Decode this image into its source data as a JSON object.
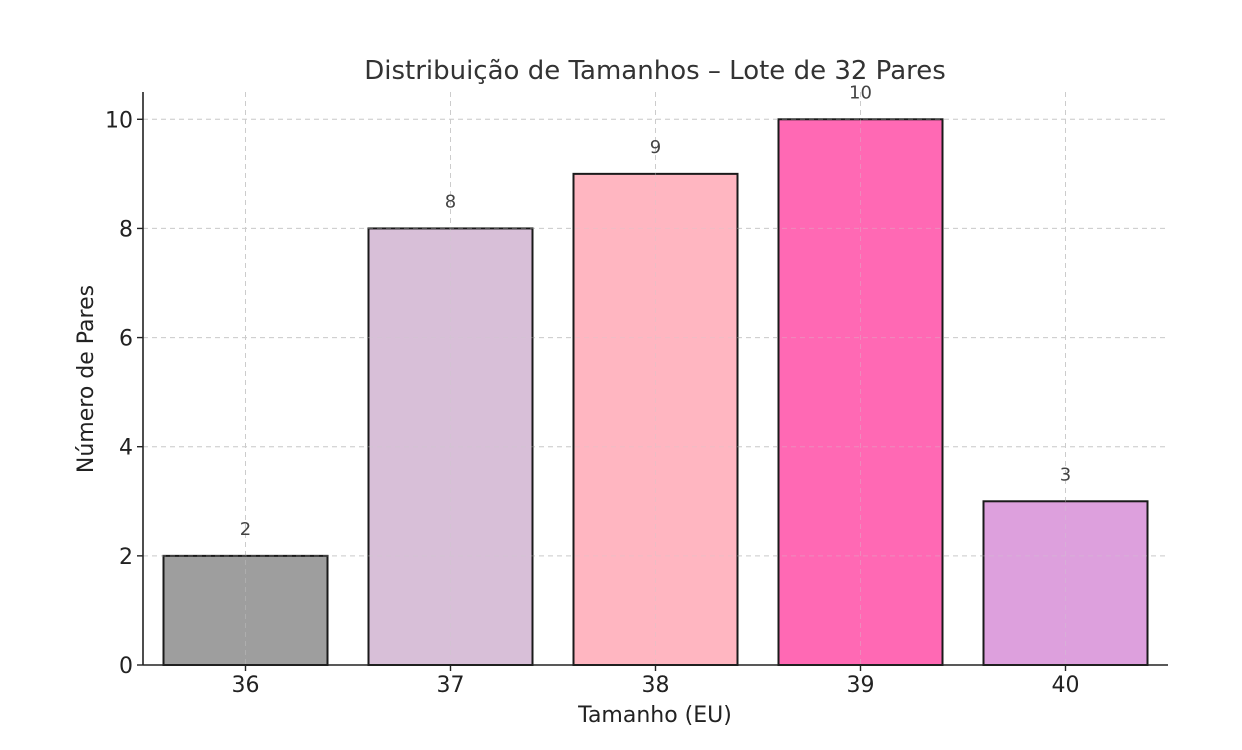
{
  "chart_data": {
    "type": "bar",
    "title": "Distribuição de Tamanhos – Lote de 32 Pares",
    "xlabel": "Tamanho (EU)",
    "ylabel": "Número de Pares",
    "categories": [
      "36",
      "37",
      "38",
      "39",
      "40"
    ],
    "values": [
      2,
      8,
      9,
      10,
      3
    ],
    "data_labels": [
      "2",
      "8",
      "9",
      "10",
      "3"
    ],
    "colors": [
      "#9e9e9e",
      "#d8bfd8",
      "#ffb6c1",
      "#ff69b4",
      "#dda0dd"
    ],
    "ylim": [
      0,
      10.5
    ],
    "yticks": [
      0,
      2,
      4,
      6,
      8,
      10
    ],
    "grid": true,
    "legend": "none"
  }
}
